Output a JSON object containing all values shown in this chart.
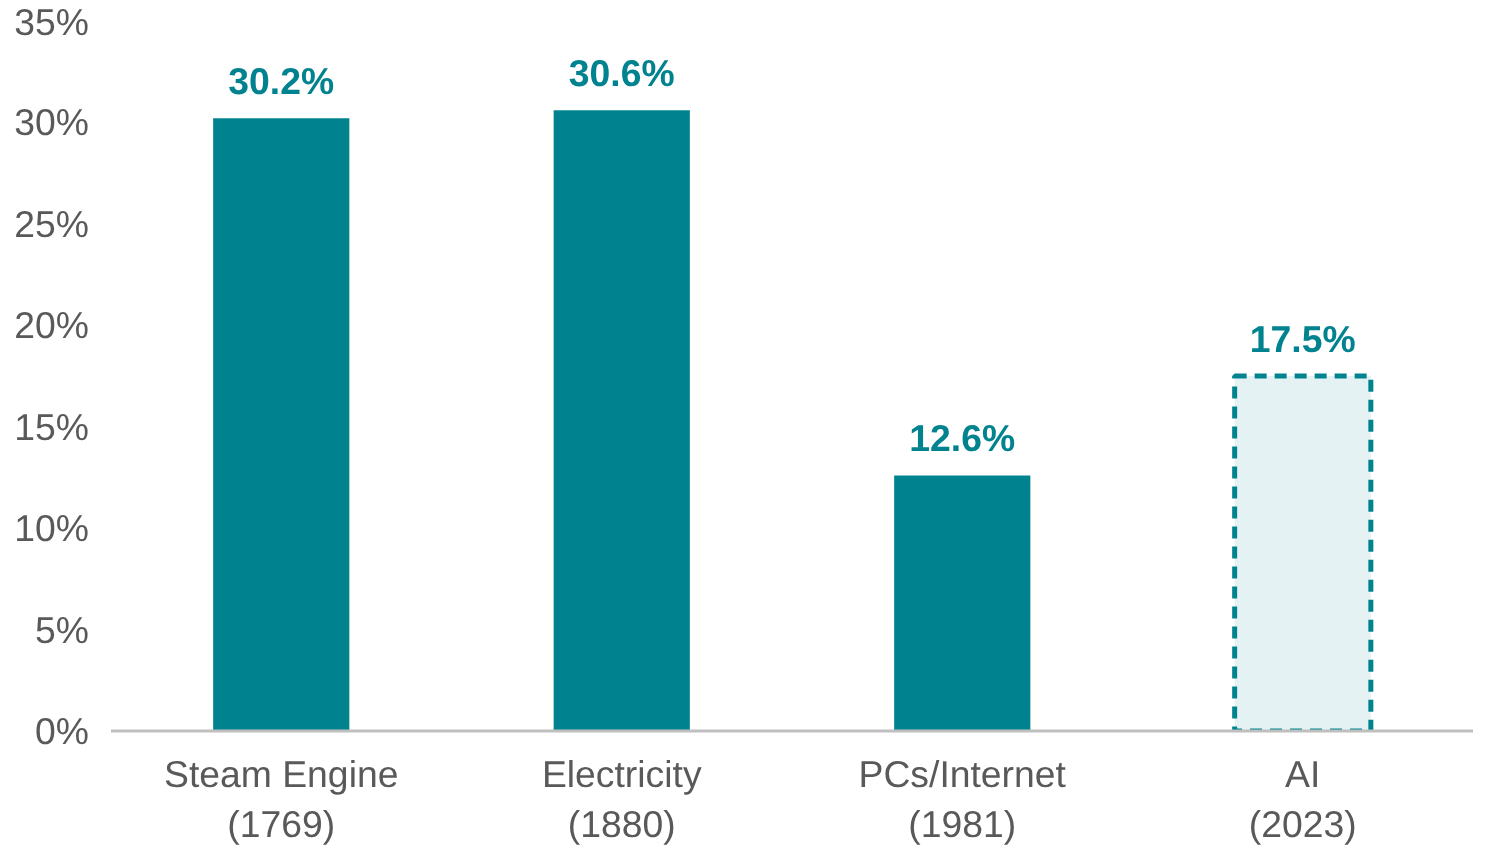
{
  "chart_data": {
    "type": "bar",
    "categories": [
      "Steam Engine\n(1769)",
      "Electricity\n(1880)",
      "PCs/Internet\n(1981)",
      "AI\n(2023)"
    ],
    "values": [
      30.2,
      30.6,
      12.6,
      17.5
    ],
    "color": "#00838f",
    "colors": [
      "#00838f",
      "#00838f",
      "#00838f",
      "#e4f2f3"
    ],
    "line_style": [
      "solid",
      "solid",
      "solid",
      "dashed"
    ],
    "value_labels": [
      "30.2%",
      "30.6%",
      "12.6%",
      "17.5%"
    ],
    "ylim": [
      0,
      35
    ],
    "yticks": [
      {
        "value": 0,
        "label": "0%"
      },
      {
        "value": 5,
        "label": "5%"
      },
      {
        "value": 10,
        "label": "10%"
      },
      {
        "value": 15,
        "label": "15%"
      },
      {
        "value": 20,
        "label": "20%"
      },
      {
        "value": 25,
        "label": "25%"
      },
      {
        "value": 30,
        "label": "30%"
      },
      {
        "value": 35,
        "label": "35%"
      }
    ],
    "grid": false
  }
}
